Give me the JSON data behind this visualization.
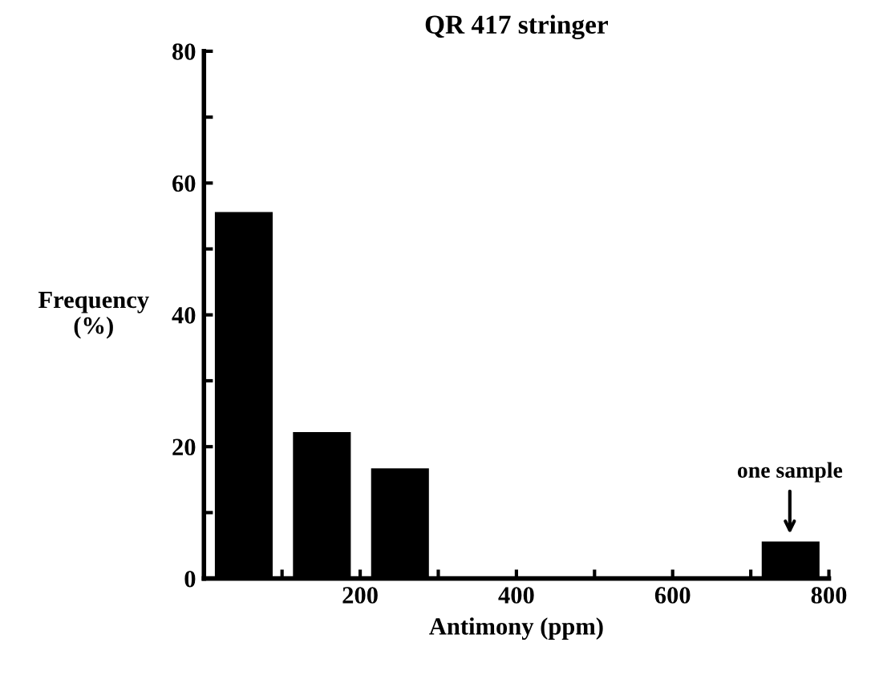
{
  "chart_data": {
    "type": "histogram",
    "title": "QR 417 stringer",
    "xlabel": "Antimony (ppm)",
    "ylabel": "Frequency\n(%)",
    "bins": [
      0,
      100,
      200,
      300,
      400,
      500,
      600,
      700,
      800
    ],
    "values": [
      55.6,
      22.2,
      16.7,
      0,
      0,
      0,
      0,
      5.6
    ],
    "color": "#000000",
    "xlim": [
      0,
      800
    ],
    "xticks": [
      {
        "value": 100,
        "label": null
      },
      200,
      {
        "value": 300,
        "label": null
      },
      400,
      {
        "value": 500,
        "label": null
      },
      600,
      {
        "value": 700,
        "label": null
      },
      800
    ],
    "ylim": [
      0,
      80
    ],
    "yticks": [
      0,
      {
        "value": 10,
        "label": null
      },
      20,
      {
        "value": 30,
        "label": null
      },
      40,
      {
        "value": 50,
        "label": null
      },
      60,
      {
        "value": 70,
        "label": null
      },
      80
    ],
    "annotations": [
      {
        "text": "one sample",
        "x": 750,
        "y": 5.6
      }
    ],
    "grid": false,
    "legend": false
  }
}
